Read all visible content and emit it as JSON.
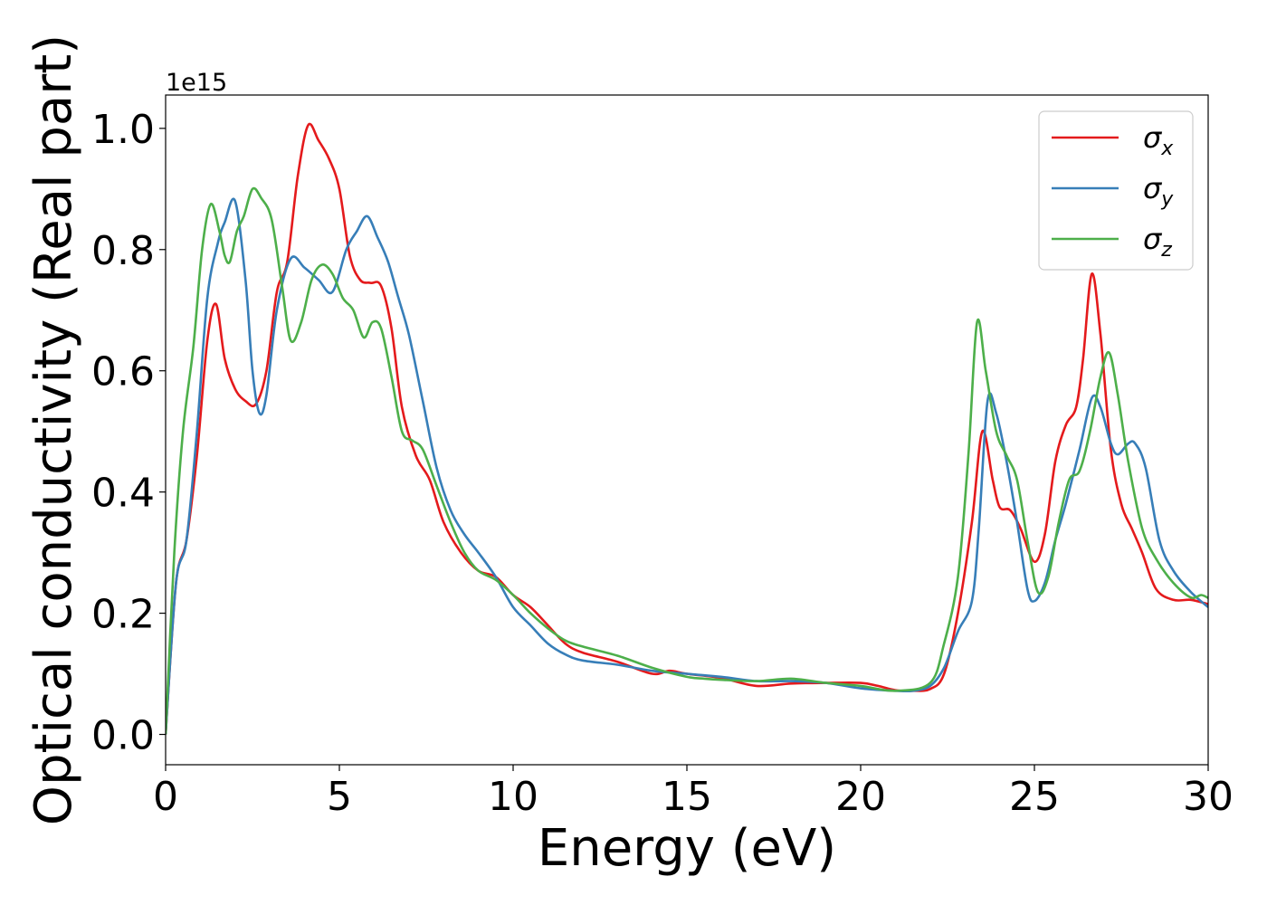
{
  "chart_data": {
    "type": "line",
    "xlabel": "Energy (eV)",
    "ylabel": "Optical conductivity (Real part)",
    "y_offset_label": "1e15",
    "xlim": [
      0,
      30
    ],
    "ylim": [
      -0.05,
      1.055
    ],
    "y_scale_factor": 1000000000000000.0,
    "xticks": [
      0,
      5,
      10,
      15,
      20,
      25,
      30
    ],
    "xtick_labels": [
      "0",
      "5",
      "10",
      "15",
      "20",
      "25",
      "30"
    ],
    "yticks": [
      0.0,
      0.2,
      0.4,
      0.6,
      0.8,
      1.0
    ],
    "ytick_labels": [
      "0.0",
      "0.2",
      "0.4",
      "0.6",
      "0.8",
      "1.0"
    ],
    "grid": false,
    "legend_position": "top-right",
    "series": [
      {
        "name": "σx",
        "symbol": "σ",
        "subscript": "x",
        "color": "#e41a1c",
        "x": [
          0,
          0.3,
          0.6,
          0.9,
          1.2,
          1.45,
          1.7,
          2.0,
          2.3,
          2.6,
          2.9,
          3.2,
          3.5,
          3.8,
          4.1,
          4.4,
          4.7,
          5.0,
          5.3,
          5.6,
          5.9,
          6.2,
          6.5,
          6.8,
          7.2,
          7.6,
          8.0,
          8.5,
          9.0,
          9.5,
          10.0,
          10.5,
          11.0,
          11.5,
          12.0,
          13.0,
          14.0,
          14.5,
          15.0,
          16.0,
          17.0,
          18.0,
          19.0,
          20.0,
          20.5,
          21.0,
          21.5,
          22.0,
          22.4,
          22.8,
          23.2,
          23.5,
          23.8,
          24.0,
          24.3,
          24.6,
          25.0,
          25.3,
          25.6,
          25.9,
          26.2,
          26.4,
          26.65,
          26.9,
          27.2,
          27.5,
          27.8,
          28.1,
          28.5,
          29.0,
          29.5,
          30.0
        ],
        "y": [
          0.0,
          0.25,
          0.32,
          0.46,
          0.65,
          0.71,
          0.62,
          0.57,
          0.55,
          0.545,
          0.6,
          0.73,
          0.78,
          0.92,
          1.005,
          0.98,
          0.95,
          0.9,
          0.79,
          0.75,
          0.745,
          0.74,
          0.67,
          0.54,
          0.46,
          0.42,
          0.35,
          0.3,
          0.27,
          0.26,
          0.23,
          0.21,
          0.18,
          0.15,
          0.135,
          0.12,
          0.1,
          0.105,
          0.1,
          0.093,
          0.08,
          0.084,
          0.085,
          0.085,
          0.08,
          0.073,
          0.072,
          0.075,
          0.1,
          0.2,
          0.35,
          0.5,
          0.42,
          0.375,
          0.37,
          0.34,
          0.285,
          0.33,
          0.45,
          0.51,
          0.54,
          0.62,
          0.76,
          0.66,
          0.47,
          0.38,
          0.34,
          0.3,
          0.24,
          0.222,
          0.222,
          0.215
        ]
      },
      {
        "name": "σy",
        "symbol": "σ",
        "subscript": "y",
        "color": "#377eb8",
        "x": [
          0,
          0.3,
          0.6,
          0.9,
          1.2,
          1.5,
          1.7,
          2.0,
          2.3,
          2.5,
          2.7,
          2.9,
          3.2,
          3.6,
          4.0,
          4.4,
          4.8,
          5.2,
          5.5,
          5.8,
          6.1,
          6.4,
          6.7,
          7.0,
          7.4,
          7.8,
          8.2,
          8.6,
          9.0,
          9.5,
          10.0,
          10.5,
          11.0,
          11.5,
          12.0,
          13.0,
          14.0,
          15.0,
          16.0,
          17.0,
          18.0,
          19.0,
          20.0,
          21.0,
          21.5,
          22.0,
          22.4,
          22.8,
          23.2,
          23.4,
          23.65,
          23.9,
          24.2,
          24.5,
          24.8,
          25.0,
          25.3,
          25.6,
          25.9,
          26.3,
          26.65,
          26.9,
          27.2,
          27.4,
          27.7,
          27.9,
          28.2,
          28.6,
          29.0,
          29.5,
          30.0
        ],
        "y": [
          0.0,
          0.25,
          0.32,
          0.5,
          0.72,
          0.81,
          0.845,
          0.88,
          0.75,
          0.6,
          0.53,
          0.56,
          0.7,
          0.785,
          0.77,
          0.75,
          0.73,
          0.8,
          0.83,
          0.855,
          0.82,
          0.78,
          0.72,
          0.66,
          0.55,
          0.44,
          0.37,
          0.33,
          0.3,
          0.26,
          0.21,
          0.18,
          0.15,
          0.132,
          0.122,
          0.115,
          0.105,
          0.1,
          0.095,
          0.088,
          0.088,
          0.085,
          0.076,
          0.072,
          0.072,
          0.08,
          0.11,
          0.17,
          0.22,
          0.34,
          0.55,
          0.53,
          0.45,
          0.35,
          0.24,
          0.22,
          0.25,
          0.32,
          0.38,
          0.47,
          0.555,
          0.54,
          0.48,
          0.462,
          0.48,
          0.48,
          0.44,
          0.32,
          0.27,
          0.235,
          0.21
        ]
      },
      {
        "name": "σz",
        "symbol": "σ",
        "subscript": "z",
        "color": "#4daf4a",
        "x": [
          0,
          0.25,
          0.5,
          0.8,
          1.05,
          1.3,
          1.55,
          1.7,
          1.85,
          2.05,
          2.25,
          2.5,
          2.75,
          3.05,
          3.35,
          3.6,
          3.9,
          4.2,
          4.5,
          4.8,
          5.1,
          5.4,
          5.7,
          5.95,
          6.2,
          6.5,
          6.8,
          7.1,
          7.4,
          7.8,
          8.2,
          8.6,
          9.0,
          9.5,
          10.0,
          10.5,
          11.0,
          11.5,
          12.0,
          13.0,
          14.0,
          15.0,
          15.5,
          16.0,
          17.0,
          18.0,
          19.0,
          20.0,
          21.0,
          22.0,
          22.4,
          22.8,
          23.1,
          23.35,
          23.6,
          23.9,
          24.2,
          24.5,
          24.8,
          25.1,
          25.4,
          25.7,
          26.0,
          26.3,
          26.6,
          26.9,
          27.15,
          27.4,
          27.7,
          28.1,
          28.5,
          29.0,
          29.5,
          29.8,
          30.0
        ],
        "y": [
          0.0,
          0.3,
          0.5,
          0.64,
          0.8,
          0.875,
          0.83,
          0.79,
          0.78,
          0.83,
          0.855,
          0.9,
          0.885,
          0.85,
          0.74,
          0.65,
          0.68,
          0.75,
          0.775,
          0.76,
          0.72,
          0.7,
          0.655,
          0.68,
          0.67,
          0.59,
          0.5,
          0.485,
          0.47,
          0.41,
          0.35,
          0.3,
          0.27,
          0.255,
          0.23,
          0.2,
          0.175,
          0.155,
          0.145,
          0.13,
          0.11,
          0.095,
          0.092,
          0.09,
          0.088,
          0.092,
          0.085,
          0.08,
          0.072,
          0.085,
          0.15,
          0.26,
          0.46,
          0.68,
          0.6,
          0.5,
          0.46,
          0.42,
          0.32,
          0.235,
          0.26,
          0.35,
          0.42,
          0.435,
          0.5,
          0.59,
          0.63,
          0.56,
          0.45,
          0.34,
          0.29,
          0.25,
          0.226,
          0.23,
          0.225
        ]
      }
    ]
  }
}
